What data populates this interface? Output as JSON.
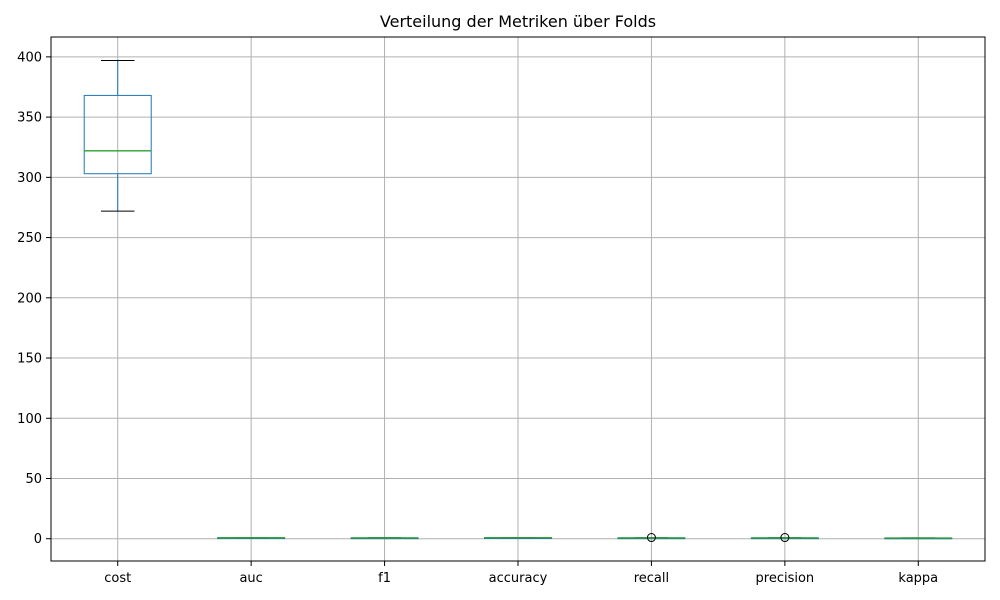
{
  "chart_data": {
    "type": "box",
    "title": "Verteilung der Metriken über Folds",
    "xlabel": "",
    "ylabel": "",
    "categories": [
      "cost",
      "auc",
      "f1",
      "accuracy",
      "recall",
      "precision",
      "kappa"
    ],
    "boxes": [
      {
        "name": "cost",
        "whisker_low": 272,
        "q1": 303,
        "median": 322,
        "q3": 368,
        "whisker_high": 397,
        "outliers": []
      },
      {
        "name": "auc",
        "whisker_low": 0.6,
        "q1": 0.7,
        "median": 0.75,
        "q3": 0.8,
        "whisker_high": 0.85,
        "outliers": []
      },
      {
        "name": "f1",
        "whisker_low": 0.5,
        "q1": 0.6,
        "median": 0.65,
        "q3": 0.7,
        "whisker_high": 0.8,
        "outliers": []
      },
      {
        "name": "accuracy",
        "whisker_low": 0.7,
        "q1": 0.75,
        "median": 0.8,
        "q3": 0.85,
        "whisker_high": 0.9,
        "outliers": []
      },
      {
        "name": "recall",
        "whisker_low": 0.55,
        "q1": 0.6,
        "median": 0.65,
        "q3": 0.7,
        "whisker_high": 0.75,
        "outliers": [
          1.0
        ]
      },
      {
        "name": "precision",
        "whisker_low": 0.55,
        "q1": 0.6,
        "median": 0.65,
        "q3": 0.7,
        "whisker_high": 0.75,
        "outliers": [
          1.0
        ]
      },
      {
        "name": "kappa",
        "whisker_low": 0.4,
        "q1": 0.5,
        "median": 0.55,
        "q3": 0.6,
        "whisker_high": 0.7,
        "outliers": []
      }
    ],
    "yticks": [
      0,
      50,
      100,
      150,
      200,
      250,
      300,
      350,
      400
    ],
    "ylim": [
      -18.5,
      416.5
    ],
    "grid": true,
    "colors": {
      "box": "#1f77b4",
      "median": "#2ca02c",
      "whisker": "#1f77b4",
      "cap": "#000000",
      "grid": "#b0b0b0",
      "axis": "#000000"
    }
  }
}
